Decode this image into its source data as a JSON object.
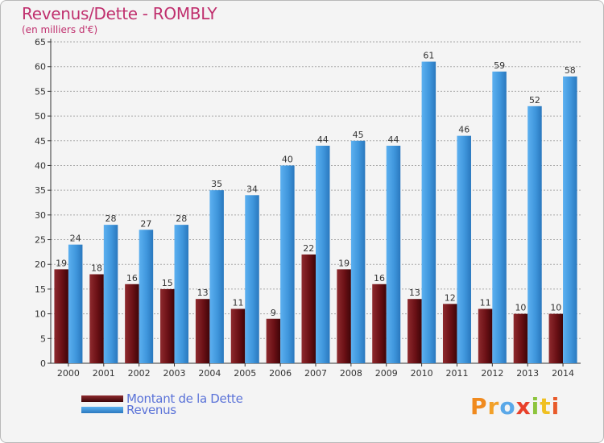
{
  "title": "Revenus/Dette - ROMBLY",
  "subtitle": "(en milliers d'€)",
  "logo_text": "Proxiti",
  "colors": {
    "title": "#c0306e",
    "dette": "#7a1a20",
    "revenus": "#4aa0e4",
    "legend_text": "#5a72d8",
    "axis": "#333333"
  },
  "legend": [
    {
      "label": "Montant de la Dette",
      "color": "#6e1418"
    },
    {
      "label": "Revenus",
      "color": "#4a9fe3"
    }
  ],
  "chart_data": {
    "type": "bar",
    "categories": [
      "2000",
      "2001",
      "2002",
      "2003",
      "2004",
      "2005",
      "2006",
      "2007",
      "2008",
      "2009",
      "2010",
      "2011",
      "2012",
      "2013",
      "2014"
    ],
    "series": [
      {
        "name": "Montant de la Dette",
        "values": [
          19,
          18,
          16,
          15,
          13,
          11,
          9,
          22,
          19,
          16,
          13,
          12,
          11,
          10,
          10
        ]
      },
      {
        "name": "Revenus",
        "values": [
          24,
          28,
          27,
          28,
          35,
          34,
          40,
          44,
          45,
          44,
          61,
          46,
          59,
          52,
          58
        ]
      }
    ],
    "ylim": [
      0,
      65
    ],
    "yticks": [
      0,
      5,
      10,
      15,
      20,
      25,
      30,
      35,
      40,
      45,
      50,
      55,
      60,
      65
    ],
    "grid": true,
    "legend_position": "bottom-left"
  }
}
